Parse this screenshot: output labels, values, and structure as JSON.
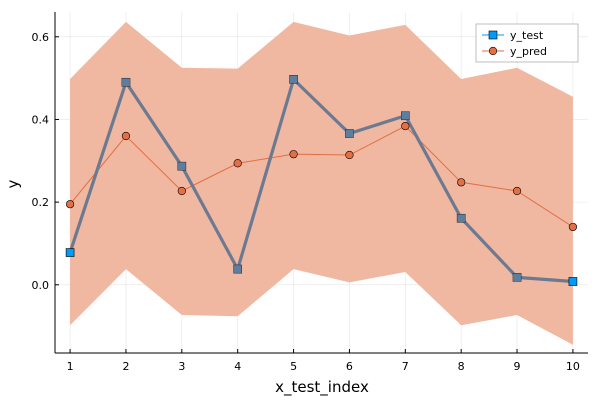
{
  "chart_data": {
    "type": "line",
    "title": "",
    "xlabel": "x_test_index",
    "ylabel": "y",
    "xlim": [
      0.73,
      10.27
    ],
    "ylim": [
      -0.165,
      0.66
    ],
    "xticks": [
      1,
      2,
      3,
      4,
      5,
      6,
      7,
      8,
      9,
      10
    ],
    "yticks": [
      0.0,
      0.2,
      0.4,
      0.6
    ],
    "ytick_labels": [
      "0.0",
      "0.2",
      "0.4",
      "0.6"
    ],
    "grid": true,
    "legend_position": "top-right",
    "x": [
      1,
      2,
      3,
      4,
      5,
      6,
      7,
      8,
      9,
      10
    ],
    "band": {
      "lower": [
        -0.098,
        0.038,
        -0.073,
        -0.076,
        0.038,
        0.006,
        0.031,
        -0.098,
        -0.073,
        -0.145
      ],
      "upper": [
        0.498,
        0.636,
        0.525,
        0.523,
        0.636,
        0.603,
        0.629,
        0.498,
        0.525,
        0.455
      ],
      "color": "#f0b7a1"
    },
    "series": [
      {
        "name": "y_test",
        "marker": "square",
        "values": [
          0.078,
          0.49,
          0.287,
          0.038,
          0.497,
          0.366,
          0.409,
          0.161,
          0.018,
          0.008
        ],
        "color": "#009af9",
        "line_color": "#6c7a91"
      },
      {
        "name": "y_pred",
        "marker": "circle",
        "values": [
          0.195,
          0.36,
          0.227,
          0.294,
          0.316,
          0.314,
          0.384,
          0.248,
          0.227,
          0.14
        ],
        "color": "#e26f46"
      }
    ]
  }
}
